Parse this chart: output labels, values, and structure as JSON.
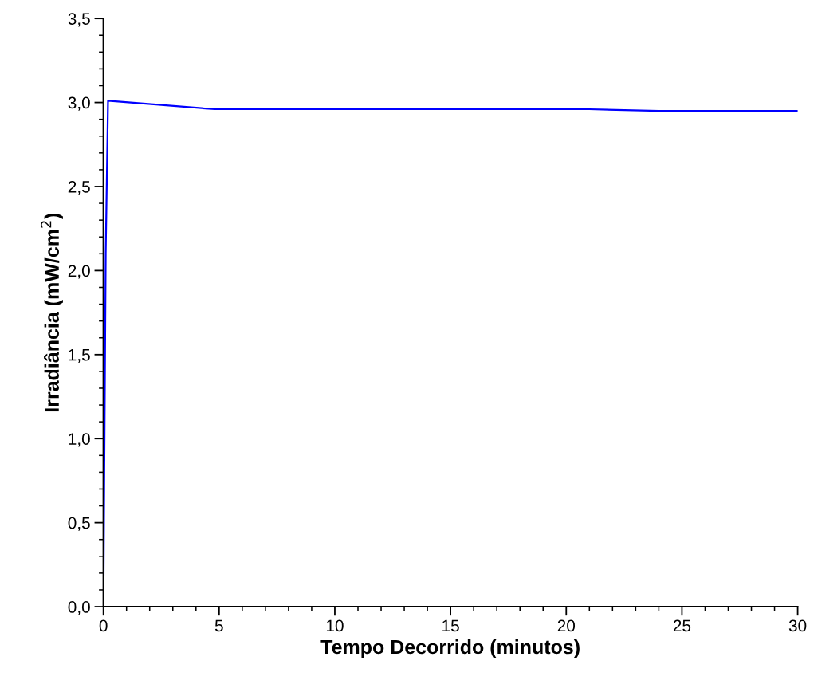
{
  "chart_data": {
    "type": "line",
    "xlabel": "Tempo Decorrido (minutos)",
    "ylabel": "Irradiância (mW/cm$^{2}$)",
    "series": [
      {
        "color": "#0000ff",
        "x": [
          0,
          0.1,
          0.2,
          4.8,
          21,
          24,
          30
        ],
        "values": [
          0,
          2.1,
          3.01,
          2.96,
          2.96,
          2.95,
          2.95
        ]
      }
    ],
    "xlim": [
      0,
      30
    ],
    "xticks": [
      0,
      5,
      10,
      15,
      20,
      25,
      30
    ],
    "ylim": [
      0,
      3.5
    ],
    "yticks": [
      {
        "value": 0,
        "label": "0,0"
      },
      {
        "value": 0.5,
        "label": "0,5"
      },
      {
        "value": 1,
        "label": "1,0"
      },
      {
        "value": 1.5,
        "label": "1,5"
      },
      {
        "value": 2,
        "label": "2,0"
      },
      {
        "value": 2.5,
        "label": "2,5"
      },
      {
        "value": 3,
        "label": "3,0"
      },
      {
        "value": 3.5,
        "label": "3,5"
      }
    ],
    "grid": false,
    "legend": false,
    "marker": "none",
    "line_style": "solid"
  }
}
